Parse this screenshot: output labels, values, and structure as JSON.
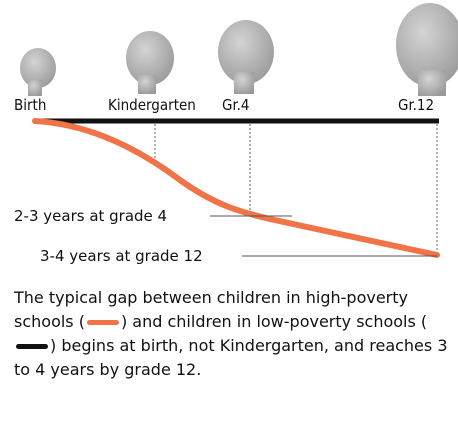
{
  "stages": [
    "Birth",
    "Kindergarten",
    "Gr.4",
    "Gr.12"
  ],
  "annotations": [
    "2-3 years at grade 4",
    "3-4 years at grade 12"
  ],
  "caption": [
    "The typical gap between children in high-poverty schools (",
    ") and children in low-poverty schools (",
    ") begins at birth, not Kindergarten, and reaches 3 to 4 years by grade 12."
  ]
}
